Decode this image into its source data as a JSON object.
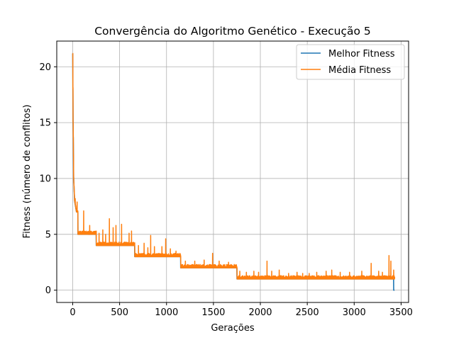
{
  "chart_data": {
    "type": "line",
    "title": "Convergência do Algoritmo Genético - Execução 5",
    "xlabel": "Gerações",
    "ylabel": "Fitness (número de conflitos)",
    "xlim": [
      -170,
      3580
    ],
    "ylim": [
      -1.1,
      22.3
    ],
    "xticks": [
      0,
      500,
      1000,
      1500,
      2000,
      2500,
      3000,
      3500
    ],
    "yticks": [
      0,
      5,
      10,
      15,
      20
    ],
    "grid": true,
    "legend_position": "top-right",
    "colors": {
      "best": "#1f77b4",
      "average": "#ff7f0e"
    },
    "series": [
      {
        "name": "Melhor Fitness",
        "color": "#1f77b4",
        "points": [
          [
            0,
            21.2
          ],
          [
            2,
            18
          ],
          [
            4,
            15
          ],
          [
            7,
            13
          ],
          [
            10,
            10
          ],
          [
            14,
            9.2
          ],
          [
            20,
            8
          ],
          [
            30,
            7.5
          ],
          [
            40,
            7
          ],
          [
            55,
            7
          ],
          [
            56,
            5
          ],
          [
            250,
            5
          ],
          [
            251,
            4
          ],
          [
            660,
            4
          ],
          [
            661,
            3
          ],
          [
            1150,
            3
          ],
          [
            1151,
            2
          ],
          [
            1750,
            2
          ],
          [
            1751,
            1
          ],
          [
            3420,
            1
          ],
          [
            3421,
            0
          ],
          [
            3430,
            0
          ]
        ]
      },
      {
        "name": "Média Fitness",
        "color": "#ff7f0e",
        "base": [
          [
            0,
            21.2
          ],
          [
            2,
            18
          ],
          [
            4,
            15
          ],
          [
            7,
            13
          ],
          [
            10,
            10
          ],
          [
            14,
            9.2
          ],
          [
            20,
            8
          ],
          [
            30,
            7.5
          ],
          [
            40,
            7
          ],
          [
            55,
            7
          ],
          [
            56,
            5
          ],
          [
            250,
            5
          ],
          [
            251,
            4
          ],
          [
            660,
            4
          ],
          [
            661,
            3
          ],
          [
            1150,
            3
          ],
          [
            1151,
            2
          ],
          [
            1750,
            2
          ],
          [
            1751,
            1
          ],
          [
            3430,
            1
          ]
        ],
        "band_width": 0.3,
        "spikes": [
          [
            25,
            8.2
          ],
          [
            45,
            7.9
          ],
          [
            115,
            7.1
          ],
          [
            180,
            5.8
          ],
          [
            280,
            5.1
          ],
          [
            320,
            5.4
          ],
          [
            350,
            5.0
          ],
          [
            390,
            6.4
          ],
          [
            430,
            5.6
          ],
          [
            460,
            5.8
          ],
          [
            520,
            5.9
          ],
          [
            600,
            5.1
          ],
          [
            625,
            5.3
          ],
          [
            700,
            4.0
          ],
          [
            760,
            4.2
          ],
          [
            800,
            3.8
          ],
          [
            830,
            4.9
          ],
          [
            870,
            3.9
          ],
          [
            950,
            3.9
          ],
          [
            990,
            4.6
          ],
          [
            1040,
            3.7
          ],
          [
            1100,
            3.5
          ],
          [
            1200,
            2.6
          ],
          [
            1300,
            2.6
          ],
          [
            1400,
            2.7
          ],
          [
            1490,
            3.3
          ],
          [
            1560,
            2.6
          ],
          [
            1660,
            2.5
          ],
          [
            1720,
            2.3
          ],
          [
            1780,
            1.7
          ],
          [
            1850,
            1.6
          ],
          [
            1930,
            1.7
          ],
          [
            1980,
            1.6
          ],
          [
            2070,
            2.6
          ],
          [
            2120,
            1.7
          ],
          [
            2200,
            1.8
          ],
          [
            2300,
            1.5
          ],
          [
            2390,
            1.6
          ],
          [
            2450,
            1.5
          ],
          [
            2520,
            1.5
          ],
          [
            2600,
            1.6
          ],
          [
            2700,
            1.7
          ],
          [
            2760,
            1.8
          ],
          [
            2850,
            1.6
          ],
          [
            2950,
            1.6
          ],
          [
            3080,
            1.7
          ],
          [
            3180,
            2.4
          ],
          [
            3260,
            1.7
          ],
          [
            3300,
            1.6
          ],
          [
            3370,
            3.1
          ],
          [
            3390,
            2.6
          ],
          [
            3420,
            1.8
          ]
        ]
      }
    ]
  }
}
